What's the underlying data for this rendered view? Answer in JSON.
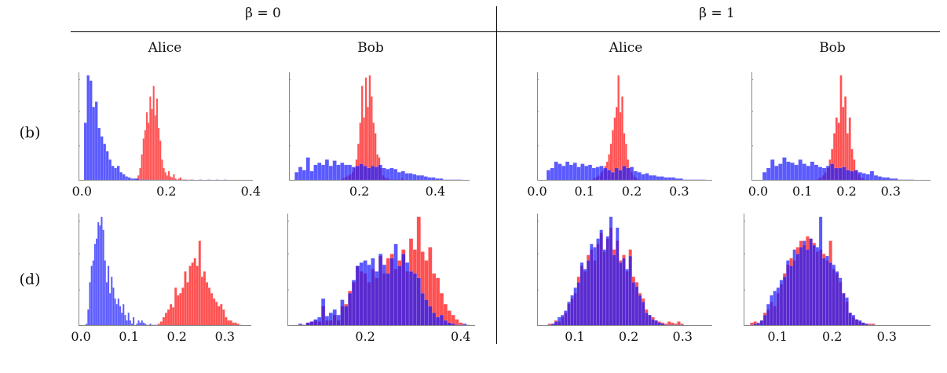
{
  "header": {
    "beta0": "β = 0",
    "beta1": "β = 1",
    "alice": "Alice",
    "bob": "Bob"
  },
  "rows": {
    "b": "(b)",
    "d": "(d)"
  },
  "colors": {
    "red": "#ff3333",
    "blue": "#1a1aff"
  },
  "chart_data": [
    {
      "id": "b1",
      "type": "histogram",
      "row": "(b)",
      "beta": 0,
      "player": "Alice",
      "xlim": [
        -0.008,
        0.405
      ],
      "ticks": [
        "0.0",
        "0.2",
        "0.4"
      ],
      "tick_values": [
        0,
        0.2,
        0.4
      ],
      "series": [
        {
          "name": "red",
          "start": 0.128,
          "bin_width": 0.004,
          "counts": [
            2,
            5,
            12,
            25,
            40,
            48,
            65,
            55,
            80,
            68,
            90,
            62,
            78,
            50,
            38,
            20,
            12,
            8,
            5,
            9,
            4,
            3,
            6,
            2,
            1,
            2,
            3,
            1,
            1,
            1,
            1,
            0,
            1
          ]
        },
        {
          "name": "blue",
          "start": 0.005,
          "bin_width": 0.0065,
          "counts": [
            55,
            100,
            95,
            70,
            75,
            50,
            42,
            35,
            28,
            20,
            14,
            12,
            14,
            8,
            6,
            4,
            3,
            2,
            2,
            2,
            1,
            1,
            1,
            1,
            1,
            0,
            0,
            1,
            1,
            0,
            0,
            1,
            0,
            1,
            0,
            0,
            1,
            0,
            0,
            1,
            0,
            0,
            1,
            0,
            0,
            1,
            0,
            0,
            1,
            0,
            0,
            1
          ]
        }
      ]
    },
    {
      "id": "b2",
      "type": "histogram",
      "row": "(b)",
      "beta": 0,
      "player": "Bob",
      "xlim": [
        0.015,
        0.49
      ],
      "ticks": [
        "0.2",
        "0.4"
      ],
      "tick_values": [
        0.2,
        0.4
      ],
      "series": [
        {
          "name": "red",
          "start": 0.15,
          "bin_width": 0.005,
          "counts": [
            1,
            2,
            3,
            4,
            5,
            6,
            8,
            12,
            20,
            35,
            55,
            90,
            60,
            98,
            70,
            100,
            80,
            55,
            45,
            25,
            22,
            12,
            5,
            3,
            2,
            2,
            1,
            1,
            1,
            1,
            1,
            1,
            2,
            1
          ]
        },
        {
          "name": "blue",
          "start": 0.03,
          "bin_width": 0.01,
          "counts": [
            8,
            13,
            10,
            22,
            9,
            15,
            17,
            15,
            20,
            14,
            19,
            15,
            17,
            15,
            15,
            13,
            14,
            16,
            14,
            12,
            14,
            13,
            15,
            12,
            11,
            12,
            11,
            8,
            9,
            7,
            7,
            6,
            5,
            5,
            4,
            3,
            3,
            2,
            2,
            1,
            1,
            1,
            1,
            1
          ]
        }
      ]
    },
    {
      "id": "b3",
      "type": "histogram",
      "row": "(b)",
      "beta": 1,
      "player": "Alice",
      "xlim": [
        0,
        0.37
      ],
      "ticks": [
        "0.0",
        "0.1",
        "0.2",
        "0.3"
      ],
      "tick_values": [
        0,
        0.1,
        0.2,
        0.3
      ],
      "series": [
        {
          "name": "red",
          "start": 0.11,
          "bin_width": 0.004,
          "counts": [
            1,
            1,
            2,
            3,
            4,
            5,
            8,
            10,
            14,
            18,
            25,
            35,
            48,
            60,
            70,
            100,
            65,
            80,
            45,
            35,
            20,
            12,
            8,
            5,
            3,
            2,
            1,
            1
          ]
        },
        {
          "name": "blue",
          "start": 0.02,
          "bin_width": 0.008,
          "counts": [
            10,
            12,
            18,
            16,
            14,
            18,
            15,
            17,
            13,
            16,
            14,
            15,
            12,
            13,
            14,
            12,
            10,
            8,
            12,
            10,
            14,
            12,
            13,
            9,
            8,
            6,
            7,
            5,
            5,
            4,
            4,
            3,
            3,
            3,
            2,
            2,
            1,
            1,
            1,
            1,
            1,
            1
          ]
        }
      ]
    },
    {
      "id": "b4",
      "type": "histogram",
      "row": "(b)",
      "beta": 1,
      "player": "Bob",
      "xlim": [
        -0.015,
        0.39
      ],
      "ticks": [
        "0.0",
        "0.1",
        "0.2",
        "0.3"
      ],
      "tick_values": [
        0,
        0.1,
        0.2,
        0.3
      ],
      "series": [
        {
          "name": "red",
          "start": 0.13,
          "bin_width": 0.005,
          "counts": [
            1,
            2,
            3,
            5,
            8,
            12,
            20,
            30,
            45,
            60,
            55,
            100,
            70,
            80,
            45,
            60,
            30,
            20,
            10,
            6,
            3,
            2,
            1,
            1
          ]
        },
        {
          "name": "blue",
          "start": 0.01,
          "bin_width": 0.009,
          "counts": [
            8,
            12,
            20,
            14,
            16,
            22,
            18,
            17,
            15,
            20,
            16,
            14,
            18,
            15,
            13,
            12,
            14,
            16,
            12,
            12,
            13,
            10,
            9,
            10,
            8,
            7,
            6,
            9,
            5,
            4,
            3,
            3,
            2,
            2,
            1,
            1,
            1,
            1
          ]
        }
      ]
    },
    {
      "id": "d1",
      "type": "histogram",
      "row": "(d)",
      "beta": 0,
      "player": "Alice",
      "xlim": [
        -0.005,
        0.355
      ],
      "ticks": [
        "0.0",
        "0.1",
        "0.2",
        "0.3"
      ],
      "tick_values": [
        0,
        0.1,
        0.2,
        0.3
      ],
      "series": [
        {
          "name": "red",
          "start": 0.16,
          "bin_width": 0.005,
          "counts": [
            2,
            4,
            8,
            12,
            15,
            20,
            17,
            35,
            28,
            30,
            35,
            50,
            40,
            55,
            58,
            62,
            55,
            78,
            45,
            50,
            40,
            35,
            30,
            25,
            22,
            18,
            20,
            15,
            8,
            5,
            5,
            3,
            3,
            2,
            1
          ]
        },
        {
          "name": "blue",
          "start": 0.01,
          "bin_width": 0.0035,
          "counts": [
            2,
            15,
            40,
            55,
            60,
            75,
            80,
            95,
            92,
            100,
            88,
            60,
            40,
            55,
            30,
            45,
            35,
            25,
            20,
            25,
            18,
            12,
            20,
            10,
            5,
            12,
            5,
            2,
            8,
            0,
            2,
            5,
            3,
            5,
            3,
            2,
            1,
            1,
            2,
            1,
            1,
            1,
            1
          ]
        }
      ]
    },
    {
      "id": "d2",
      "type": "histogram",
      "row": "(d)",
      "beta": 0,
      "player": "Bob",
      "xlim": [
        0.037,
        0.43
      ],
      "ticks": [
        "0.2",
        "0.4"
      ],
      "tick_values": [
        0.2,
        0.4
      ],
      "series": [
        {
          "name": "red",
          "start": 0.06,
          "bin_width": 0.008,
          "counts": [
            1,
            1,
            3,
            4,
            5,
            4,
            18,
            5,
            5,
            10,
            5,
            18,
            20,
            32,
            40,
            55,
            50,
            48,
            40,
            52,
            44,
            64,
            48,
            62,
            66,
            52,
            60,
            70,
            50,
            80,
            70,
            100,
            68,
            60,
            72,
            48,
            44,
            30,
            20,
            14,
            10,
            6,
            3,
            1,
            1
          ]
        },
        {
          "name": "blue",
          "start": 0.06,
          "bin_width": 0.008,
          "counts": [
            2,
            1,
            3,
            4,
            6,
            8,
            25,
            9,
            12,
            15,
            10,
            24,
            18,
            30,
            42,
            55,
            58,
            60,
            56,
            62,
            50,
            66,
            56,
            48,
            62,
            75,
            55,
            66,
            58,
            50,
            48,
            44,
            30,
            24,
            18,
            12,
            8,
            10,
            5,
            3,
            2,
            1,
            1,
            2
          ]
        }
      ]
    },
    {
      "id": "d3",
      "type": "histogram",
      "row": "(d)",
      "beta": 1,
      "player": "Alice",
      "xlim": [
        0.03,
        0.355
      ],
      "ticks": [
        "0.1",
        "0.2",
        "0.3"
      ],
      "tick_values": [
        0.1,
        0.2,
        0.3
      ],
      "series": [
        {
          "name": "red",
          "start": 0.05,
          "bin_width": 0.006,
          "counts": [
            2,
            2,
            5,
            4,
            8,
            12,
            20,
            25,
            30,
            45,
            55,
            50,
            65,
            70,
            60,
            75,
            85,
            68,
            80,
            90,
            70,
            78,
            60,
            65,
            50,
            70,
            45,
            40,
            30,
            25,
            15,
            10,
            8,
            5,
            4,
            3,
            2,
            4,
            3,
            2,
            4,
            2
          ]
        },
        {
          "name": "blue",
          "start": 0.05,
          "bin_width": 0.006,
          "counts": [
            1,
            2,
            4,
            8,
            10,
            14,
            22,
            28,
            35,
            40,
            58,
            52,
            60,
            75,
            72,
            80,
            88,
            70,
            82,
            100,
            65,
            90,
            58,
            62,
            52,
            64,
            40,
            36,
            28,
            22,
            12,
            10,
            6,
            5,
            3,
            2,
            1,
            1,
            1,
            1,
            1,
            1
          ]
        }
      ]
    },
    {
      "id": "d4",
      "type": "histogram",
      "row": "(d)",
      "beta": 1,
      "player": "Bob",
      "xlim": [
        0.038,
        0.38
      ],
      "ticks": [
        "0.1",
        "0.2",
        "0.3"
      ],
      "tick_values": [
        0.1,
        0.2,
        0.3
      ],
      "series": [
        {
          "name": "red",
          "start": 0.05,
          "bin_width": 0.006,
          "counts": [
            3,
            4,
            2,
            5,
            12,
            15,
            22,
            18,
            30,
            38,
            48,
            56,
            62,
            60,
            72,
            78,
            74,
            82,
            80,
            76,
            68,
            70,
            66,
            60,
            78,
            52,
            48,
            40,
            30,
            22,
            12,
            8,
            6,
            4,
            3,
            2,
            2,
            2
          ]
        },
        {
          "name": "blue",
          "start": 0.05,
          "bin_width": 0.006,
          "counts": [
            1,
            2,
            3,
            5,
            10,
            20,
            28,
            32,
            35,
            42,
            45,
            60,
            55,
            70,
            66,
            72,
            78,
            70,
            80,
            74,
            72,
            100,
            62,
            64,
            58,
            56,
            50,
            44,
            30,
            26,
            12,
            10,
            6,
            5,
            3,
            2,
            1,
            1
          ]
        }
      ]
    }
  ]
}
